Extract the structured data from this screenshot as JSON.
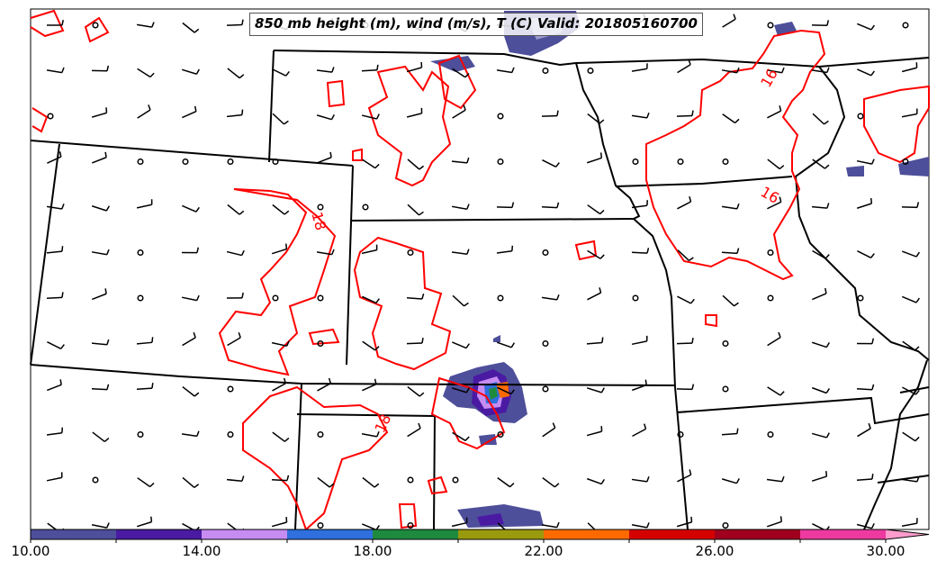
{
  "title": "850 mb height (m), wind (m/s), T (C) Valid: 201805160700",
  "contour_labels": [
    {
      "text": "18",
      "kind": "isotherm"
    },
    {
      "text": "16",
      "kind": "isotherm"
    },
    {
      "text": "16",
      "kind": "isotherm"
    },
    {
      "text": "18",
      "kind": "isotherm"
    }
  ],
  "colorbar": {
    "ticks": [
      "10.00",
      "14.00",
      "18.00",
      "22.00",
      "26.00",
      "30.00"
    ],
    "min": 10,
    "max": 30,
    "step": 2,
    "extend": "max",
    "colors": [
      "#4e4f9a",
      "#4a1aa3",
      "#c68cf2",
      "#2f6fde",
      "#1e8a3e",
      "#9a9a0e",
      "#ff6a00",
      "#d40000",
      "#a0001e",
      "#ee3aa0",
      "#ff9ccd"
    ]
  },
  "colors": {
    "isotherm": "#ff0000",
    "boundary": "#000000",
    "wind": "#000000"
  }
}
